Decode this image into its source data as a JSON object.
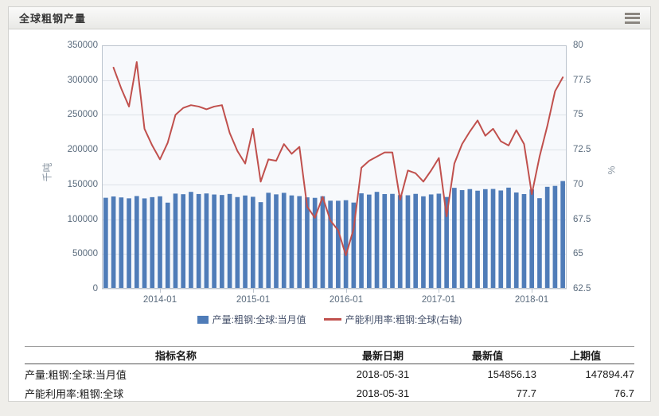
{
  "window": {
    "title": "全球粗钢产量",
    "menu_icon": "hamburger-icon"
  },
  "colors": {
    "bar": "#4f7cb8",
    "line": "#c0504d",
    "plot_bg": "#f7f9fc",
    "grid": "#dde2e8",
    "plot_border": "#bcc4ce",
    "tick_text": "#5a6b7d",
    "legend_text": "#44506a"
  },
  "chart_data": {
    "type": "bar",
    "subtype": "bar+line dual axis",
    "months": [
      "2013-06",
      "2013-07",
      "2013-08",
      "2013-09",
      "2013-10",
      "2013-11",
      "2013-12",
      "2014-01",
      "2014-02",
      "2014-03",
      "2014-04",
      "2014-05",
      "2014-06",
      "2014-07",
      "2014-08",
      "2014-09",
      "2014-10",
      "2014-11",
      "2014-12",
      "2015-01",
      "2015-02",
      "2015-03",
      "2015-04",
      "2015-05",
      "2015-06",
      "2015-07",
      "2015-08",
      "2015-09",
      "2015-10",
      "2015-11",
      "2015-12",
      "2016-01",
      "2016-02",
      "2016-03",
      "2016-04",
      "2016-05",
      "2016-06",
      "2016-07",
      "2016-08",
      "2016-09",
      "2016-10",
      "2016-11",
      "2016-12",
      "2017-01",
      "2017-02",
      "2017-03",
      "2017-04",
      "2017-05",
      "2017-06",
      "2017-07",
      "2017-08",
      "2017-09",
      "2017-10",
      "2017-11",
      "2017-12",
      "2018-01",
      "2018-02",
      "2018-03",
      "2018-04",
      "2018-05"
    ],
    "series": [
      {
        "name": "产量:粗钢:全球:当月值",
        "type": "bar",
        "axis": "left",
        "color": "#4f7cb8",
        "values": [
          130800,
          132700,
          131300,
          130000,
          133300,
          129900,
          131700,
          132900,
          123800,
          136800,
          135900,
          139300,
          136200,
          137000,
          135500,
          134800,
          136300,
          131800,
          134100,
          132200,
          124500,
          138000,
          135700,
          137900,
          134200,
          133200,
          131400,
          130700,
          133000,
          126600,
          126500,
          127300,
          123900,
          137200,
          135400,
          139300,
          136100,
          136400,
          134600,
          134400,
          136400,
          132900,
          135600,
          136700,
          131900,
          145100,
          141800,
          143300,
          141000,
          143200,
          143500,
          141300,
          145400,
          138400,
          136100,
          142800,
          130200,
          146600,
          147894.47,
          154856.13
        ]
      },
      {
        "name": "产能利用率:粗钢:全球(右轴)",
        "type": "line",
        "axis": "right",
        "color": "#c0504d",
        "values": [
          null,
          78.4,
          76.9,
          75.6,
          78.8,
          74.0,
          72.8,
          71.8,
          73.0,
          75.0,
          75.5,
          75.7,
          75.6,
          75.4,
          75.6,
          75.7,
          73.7,
          72.4,
          71.5,
          74.0,
          70.2,
          71.8,
          71.7,
          72.9,
          72.2,
          72.7,
          68.4,
          67.6,
          69.1,
          67.4,
          66.7,
          64.9,
          66.8,
          71.2,
          71.7,
          72.0,
          72.3,
          72.3,
          68.9,
          71.0,
          70.8,
          70.2,
          71.0,
          71.9,
          67.7,
          71.5,
          72.9,
          73.8,
          74.6,
          73.5,
          74.0,
          73.1,
          72.8,
          73.9,
          72.9,
          69.3,
          72.0,
          74.2,
          76.7,
          77.7
        ]
      }
    ],
    "left_axis": {
      "label": "千吨",
      "min": 0,
      "max": 350000,
      "ticks": [
        350000,
        300000,
        250000,
        200000,
        150000,
        100000,
        50000,
        0
      ]
    },
    "right_axis": {
      "label": "%",
      "min": 62.5,
      "max": 80,
      "ticks": [
        80,
        77.5,
        75,
        72.5,
        70,
        67.5,
        65,
        62.5
      ]
    },
    "x_ticks": [
      {
        "label": "2014-01",
        "index": 7
      },
      {
        "label": "2015-01",
        "index": 19
      },
      {
        "label": "2016-01",
        "index": 31
      },
      {
        "label": "2017-01",
        "index": 43
      },
      {
        "label": "2018-01",
        "index": 55
      }
    ],
    "grid": true,
    "legend_position": "bottom"
  },
  "table": {
    "headers": [
      "指标名称",
      "最新日期",
      "最新值",
      "上期值"
    ],
    "rows": [
      [
        "产量:粗钢:全球:当月值",
        "2018-05-31",
        "154856.13",
        "147894.47"
      ],
      [
        "产能利用率:粗钢:全球",
        "2018-05-31",
        "77.7",
        "76.7"
      ]
    ]
  }
}
